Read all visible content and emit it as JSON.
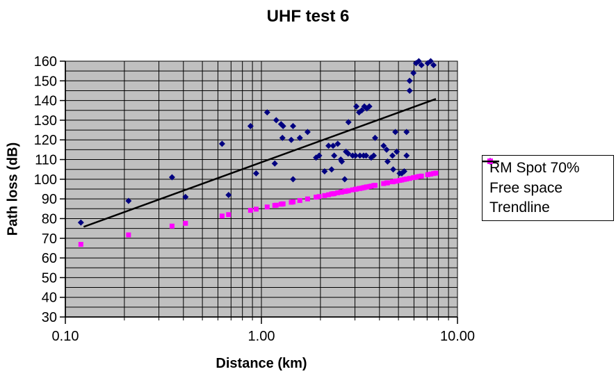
{
  "page": {
    "background": "#ffffff"
  },
  "colors": {
    "rm_spot": "#000080",
    "free_space": "#ff00ff",
    "trendline": "#000000",
    "plot_background": "#c0c0c0",
    "gridline": "#000000",
    "text": "#000000"
  },
  "chart_data": {
    "type": "scatter",
    "title": "UHF test 6",
    "xlabel": "Distance (km)",
    "ylabel": "Path loss (dB)",
    "x_scale": "log",
    "xlim": [
      0.1,
      10
    ],
    "ylim": [
      30,
      160
    ],
    "y_major_step": 10,
    "y_minor_step": 5,
    "grid": "on",
    "legend_position": "right",
    "plot_background": "#c0c0c0",
    "x_tick_labels": [
      {
        "label": "0.10",
        "value": 0.1
      },
      {
        "label": "1.00",
        "value": 1
      },
      {
        "label": "10.00",
        "value": 10
      }
    ],
    "series": [
      {
        "name": "RM Spot 70%",
        "marker": "diamond",
        "color": "#000080",
        "points": [
          [
            0.12,
            78
          ],
          [
            0.21,
            89
          ],
          [
            0.35,
            101
          ],
          [
            0.41,
            91
          ],
          [
            0.63,
            118
          ],
          [
            0.68,
            92
          ],
          [
            0.88,
            127
          ],
          [
            0.94,
            103
          ],
          [
            1.07,
            134
          ],
          [
            1.17,
            108
          ],
          [
            1.19,
            130
          ],
          [
            1.26,
            128
          ],
          [
            1.28,
            121
          ],
          [
            1.29,
            127
          ],
          [
            1.42,
            120
          ],
          [
            1.45,
            127
          ],
          [
            1.45,
            100
          ],
          [
            1.57,
            121
          ],
          [
            1.72,
            124
          ],
          [
            1.9,
            111
          ],
          [
            1.97,
            112
          ],
          [
            2.1,
            104
          ],
          [
            2.2,
            117
          ],
          [
            2.28,
            105
          ],
          [
            2.32,
            117
          ],
          [
            2.35,
            112
          ],
          [
            2.45,
            118
          ],
          [
            2.54,
            110
          ],
          [
            2.57,
            109
          ],
          [
            2.66,
            100
          ],
          [
            2.7,
            114
          ],
          [
            2.77,
            113
          ],
          [
            2.78,
            129
          ],
          [
            2.92,
            112
          ],
          [
            3.02,
            112
          ],
          [
            3.05,
            137
          ],
          [
            3.15,
            134
          ],
          [
            3.18,
            112
          ],
          [
            3.25,
            135
          ],
          [
            3.32,
            112
          ],
          [
            3.35,
            137
          ],
          [
            3.42,
            112
          ],
          [
            3.45,
            136
          ],
          [
            3.55,
            137
          ],
          [
            3.63,
            111
          ],
          [
            3.74,
            112
          ],
          [
            3.8,
            121
          ],
          [
            4.2,
            117
          ],
          [
            4.35,
            115
          ],
          [
            4.4,
            109
          ],
          [
            4.66,
            112
          ],
          [
            4.7,
            105
          ],
          [
            4.82,
            124
          ],
          [
            4.9,
            114
          ],
          [
            5.07,
            103
          ],
          [
            5.2,
            103
          ],
          [
            5.35,
            104
          ],
          [
            5.5,
            112
          ],
          [
            5.5,
            124
          ],
          [
            5.7,
            145
          ],
          [
            5.7,
            150
          ],
          [
            5.96,
            154
          ],
          [
            6.15,
            159
          ],
          [
            6.35,
            160
          ],
          [
            6.55,
            158
          ],
          [
            7.05,
            159
          ],
          [
            7.3,
            160
          ],
          [
            7.55,
            158
          ]
        ]
      },
      {
        "name": "Free space",
        "marker": "square",
        "color": "#ff00ff",
        "points": [
          [
            0.12,
            66.9
          ],
          [
            0.21,
            71.7
          ],
          [
            0.35,
            76.2
          ],
          [
            0.41,
            77.6
          ],
          [
            0.63,
            81.3
          ],
          [
            0.68,
            82.0
          ],
          [
            0.88,
            84.2
          ],
          [
            0.94,
            84.8
          ],
          [
            1.07,
            85.9
          ],
          [
            1.17,
            86.7
          ],
          [
            1.19,
            86.8
          ],
          [
            1.26,
            87.3
          ],
          [
            1.28,
            87.4
          ],
          [
            1.29,
            87.5
          ],
          [
            1.42,
            88.3
          ],
          [
            1.45,
            88.5
          ],
          [
            1.57,
            89.2
          ],
          [
            1.72,
            90.0
          ],
          [
            1.9,
            90.9
          ],
          [
            1.97,
            91.2
          ],
          [
            2.1,
            91.7
          ],
          [
            2.2,
            92.1
          ],
          [
            2.28,
            92.5
          ],
          [
            2.32,
            92.6
          ],
          [
            2.35,
            92.7
          ],
          [
            2.45,
            93.1
          ],
          [
            2.54,
            93.4
          ],
          [
            2.57,
            93.5
          ],
          [
            2.66,
            93.8
          ],
          [
            2.7,
            93.9
          ],
          [
            2.77,
            94.1
          ],
          [
            2.78,
            94.2
          ],
          [
            2.92,
            94.6
          ],
          [
            3.02,
            94.9
          ],
          [
            3.05,
            95.0
          ],
          [
            3.15,
            95.3
          ],
          [
            3.18,
            95.3
          ],
          [
            3.25,
            95.5
          ],
          [
            3.32,
            95.7
          ],
          [
            3.35,
            95.8
          ],
          [
            3.42,
            96.0
          ],
          [
            3.45,
            96.1
          ],
          [
            3.55,
            96.3
          ],
          [
            3.63,
            96.5
          ],
          [
            3.74,
            96.8
          ],
          [
            3.8,
            96.9
          ],
          [
            4.2,
            97.8
          ],
          [
            4.35,
            98.1
          ],
          [
            4.4,
            98.2
          ],
          [
            4.66,
            98.7
          ],
          [
            4.7,
            98.7
          ],
          [
            4.82,
            99.0
          ],
          [
            4.9,
            99.1
          ],
          [
            5.07,
            99.4
          ],
          [
            5.2,
            99.6
          ],
          [
            5.35,
            99.9
          ],
          [
            5.5,
            100.1
          ],
          [
            5.7,
            100.4
          ],
          [
            5.96,
            100.8
          ],
          [
            6.15,
            101.1
          ],
          [
            6.35,
            101.4
          ],
          [
            6.55,
            101.6
          ],
          [
            7.05,
            102.3
          ],
          [
            7.3,
            102.6
          ],
          [
            7.55,
            102.9
          ],
          [
            7.76,
            103.1
          ]
        ]
      },
      {
        "name": "Trendline",
        "marker": "line",
        "color": "#000000",
        "points": [
          [
            0.124,
            75.8
          ],
          [
            7.76,
            140.8
          ]
        ]
      }
    ]
  }
}
